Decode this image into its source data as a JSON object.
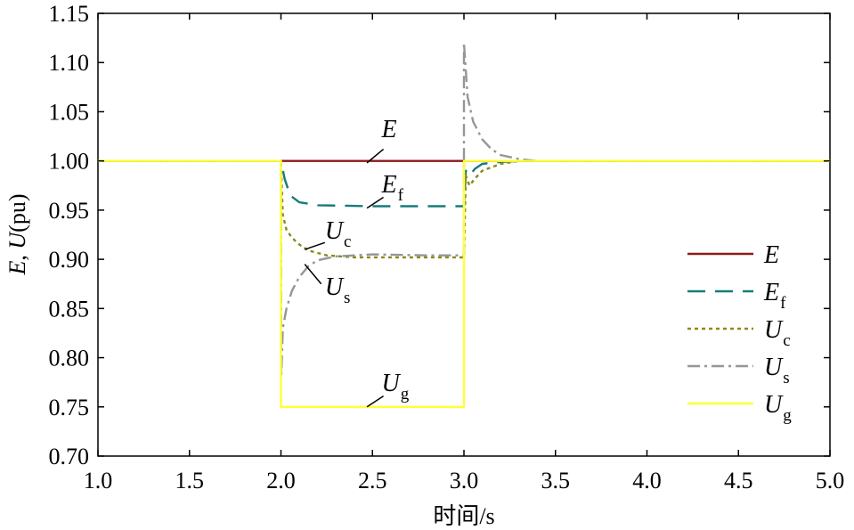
{
  "chart_data": {
    "type": "line",
    "title": "",
    "xlabel": "时间/s",
    "ylabel": {
      "var1": "E",
      "sep": ", ",
      "var2": "U",
      "unit": "(pu)"
    },
    "xlim": [
      1.0,
      5.0
    ],
    "ylim": [
      0.7,
      1.15
    ],
    "xticks": [
      "1.0",
      "1.5",
      "2.0",
      "2.5",
      "3.0",
      "3.5",
      "4.0",
      "4.5",
      "5.0"
    ],
    "yticks": [
      "0.70",
      "0.75",
      "0.80",
      "0.85",
      "0.90",
      "0.95",
      "1.00",
      "1.05",
      "1.10",
      "1.15"
    ],
    "grid": false,
    "legend_position": "right",
    "series": [
      {
        "id": "E",
        "name": "E",
        "sub": "",
        "color": "#8B1A1A",
        "dash": "",
        "points": [
          [
            1.0,
            1.0
          ],
          [
            5.0,
            1.0
          ]
        ]
      },
      {
        "id": "Ef",
        "name": "E",
        "sub": "f",
        "color": "#1A7A7A",
        "dash": "20,11",
        "points": [
          [
            1.0,
            1.0
          ],
          [
            2.0,
            1.0
          ],
          [
            2.02,
            0.982
          ],
          [
            2.05,
            0.965
          ],
          [
            2.1,
            0.958
          ],
          [
            2.2,
            0.955
          ],
          [
            2.5,
            0.954
          ],
          [
            3.0,
            0.954
          ],
          [
            3.01,
            0.99
          ],
          [
            3.03,
            0.985
          ],
          [
            3.06,
            0.992
          ],
          [
            3.1,
            0.997
          ],
          [
            3.2,
            0.999
          ],
          [
            3.3,
            1.0
          ],
          [
            5.0,
            1.0
          ]
        ]
      },
      {
        "id": "Uc",
        "name": "U",
        "sub": "c",
        "color": "#8A8A1A",
        "dash": "4,4",
        "points": [
          [
            1.0,
            1.0
          ],
          [
            2.0,
            1.0
          ],
          [
            2.01,
            0.945
          ],
          [
            2.03,
            0.93
          ],
          [
            2.06,
            0.922
          ],
          [
            2.1,
            0.915
          ],
          [
            2.15,
            0.909
          ],
          [
            2.25,
            0.904
          ],
          [
            2.4,
            0.902
          ],
          [
            2.7,
            0.902
          ],
          [
            3.0,
            0.902
          ],
          [
            3.01,
            0.985
          ],
          [
            3.03,
            0.975
          ],
          [
            3.06,
            0.982
          ],
          [
            3.1,
            0.99
          ],
          [
            3.2,
            0.997
          ],
          [
            3.3,
            1.0
          ],
          [
            5.0,
            1.0
          ]
        ]
      },
      {
        "id": "Us",
        "name": "U",
        "sub": "s",
        "color": "#969696",
        "dash": "14,5,3,5",
        "points": [
          [
            1.0,
            1.0
          ],
          [
            2.0,
            1.0
          ],
          [
            2.002,
            0.78
          ],
          [
            2.01,
            0.83
          ],
          [
            2.03,
            0.85
          ],
          [
            2.06,
            0.868
          ],
          [
            2.1,
            0.882
          ],
          [
            2.15,
            0.893
          ],
          [
            2.2,
            0.899
          ],
          [
            2.3,
            0.903
          ],
          [
            2.5,
            0.905
          ],
          [
            2.8,
            0.904
          ],
          [
            3.0,
            0.904
          ],
          [
            3.0,
            1.12
          ],
          [
            3.02,
            1.065
          ],
          [
            3.05,
            1.04
          ],
          [
            3.1,
            1.022
          ],
          [
            3.15,
            1.012
          ],
          [
            3.2,
            1.006
          ],
          [
            3.3,
            1.002
          ],
          [
            3.4,
            1.0
          ],
          [
            5.0,
            1.0
          ]
        ]
      },
      {
        "id": "Ug",
        "name": "U",
        "sub": "g",
        "color": "#FFFF33",
        "dash": "",
        "points": [
          [
            1.0,
            1.0
          ],
          [
            2.0,
            1.0
          ],
          [
            2.0,
            0.75
          ],
          [
            3.0,
            0.75
          ],
          [
            3.0,
            1.0
          ],
          [
            5.0,
            1.0
          ]
        ]
      }
    ],
    "annotations": [
      {
        "label": "E",
        "sub": "",
        "x": 2.55,
        "y": 1.024,
        "line": [
          [
            2.47,
            0.998
          ],
          [
            2.56,
            1.012
          ]
        ]
      },
      {
        "label": "E",
        "sub": "f",
        "x": 2.55,
        "y": 0.968,
        "line": [
          [
            2.47,
            0.952
          ],
          [
            2.56,
            0.963
          ]
        ]
      },
      {
        "label": "U",
        "sub": "c",
        "x": 2.24,
        "y": 0.921,
        "line": [
          [
            2.13,
            0.91
          ],
          [
            2.24,
            0.917
          ]
        ]
      },
      {
        "label": "U",
        "sub": "s",
        "x": 2.24,
        "y": 0.864,
        "line": [
          [
            2.13,
            0.895
          ],
          [
            2.22,
            0.875
          ]
        ]
      },
      {
        "label": "U",
        "sub": "g",
        "x": 2.55,
        "y": 0.766,
        "line": [
          [
            2.47,
            0.75
          ],
          [
            2.56,
            0.761
          ]
        ]
      }
    ]
  }
}
